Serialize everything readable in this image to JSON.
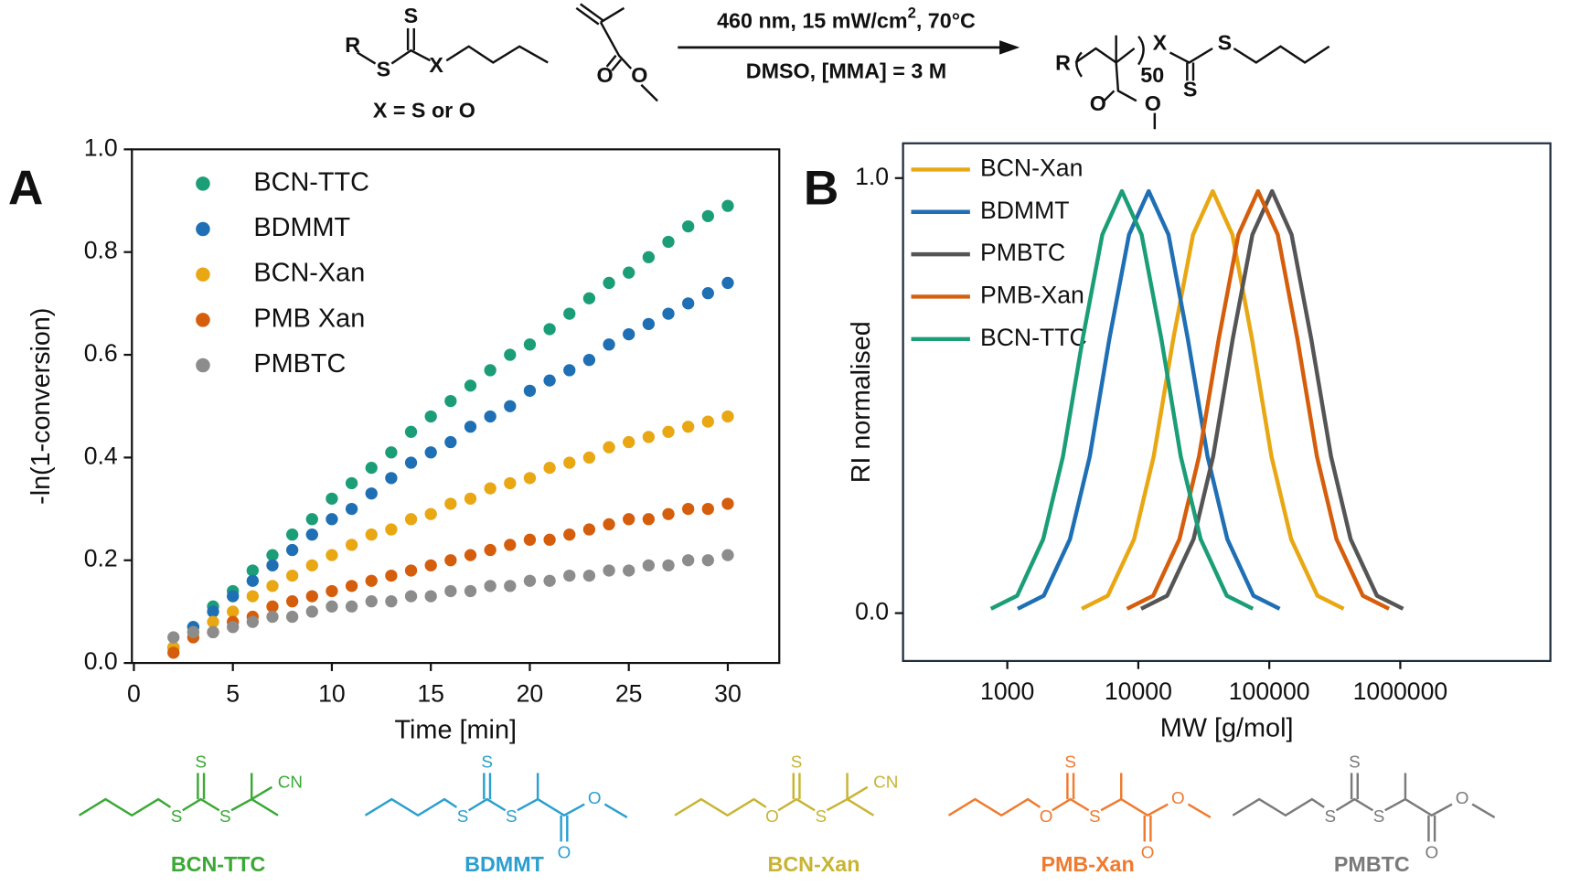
{
  "scheme": {
    "reactant_atoms": [
      "R",
      "S",
      "S",
      "X"
    ],
    "x_def": "X = S or O",
    "monomer_atoms": [
      "O",
      "O"
    ],
    "conditions_top": [
      "460 nm, 15 mW/cm",
      "2",
      ", 70°C"
    ],
    "conditions_bottom": "DMSO, [MMA] = 3 M",
    "product_atoms": [
      "R",
      "X",
      "50",
      "S",
      "S",
      "O",
      "O"
    ]
  },
  "chart_data": [
    {
      "type": "scatter",
      "panel": "A",
      "xlabel": "Time [min]",
      "ylabel": "-ln(1-conversion)",
      "xlim": [
        -0.1,
        32.6
      ],
      "ylim": [
        0,
        1.0
      ],
      "xticks": [
        0,
        5,
        10,
        15,
        20,
        25,
        30
      ],
      "yticks": [
        {
          "value": 0,
          "label": "0.0"
        },
        {
          "value": 0.2,
          "label": "0.2"
        },
        {
          "value": 0.4,
          "label": "0.4"
        },
        {
          "value": 0.6,
          "label": "0.6"
        },
        {
          "value": 0.8,
          "label": "0.8"
        },
        {
          "value": 1.0,
          "label": "1.0"
        }
      ],
      "legend": "upper left",
      "x": [
        2,
        3,
        4,
        5,
        6,
        7,
        8,
        9,
        10,
        11,
        12,
        13,
        14,
        15,
        16,
        17,
        18,
        19,
        20,
        21,
        22,
        23,
        24,
        25,
        26,
        27,
        28,
        29,
        30
      ],
      "series": [
        {
          "name": "BCN-TTC",
          "color": "#1b9e77",
          "values": [
            0.03,
            0.07,
            0.11,
            0.14,
            0.18,
            0.21,
            0.25,
            0.28,
            0.32,
            0.35,
            0.38,
            0.41,
            0.45,
            0.48,
            0.51,
            0.54,
            0.57,
            0.6,
            0.62,
            0.65,
            0.68,
            0.71,
            0.74,
            0.76,
            0.79,
            0.82,
            0.85,
            0.87,
            0.89
          ]
        },
        {
          "name": "BDMMT",
          "color": "#1f6fb5",
          "values": [
            0.03,
            0.07,
            0.1,
            0.13,
            0.16,
            0.19,
            0.22,
            0.25,
            0.28,
            0.3,
            0.33,
            0.36,
            0.39,
            0.41,
            0.43,
            0.46,
            0.48,
            0.5,
            0.53,
            0.55,
            0.57,
            0.59,
            0.62,
            0.64,
            0.66,
            0.68,
            0.7,
            0.72,
            0.74
          ]
        },
        {
          "name": "BCN-Xan",
          "color": "#e8a713",
          "values": [
            0.03,
            0.06,
            0.08,
            0.1,
            0.13,
            0.15,
            0.17,
            0.19,
            0.21,
            0.23,
            0.25,
            0.26,
            0.28,
            0.29,
            0.31,
            0.32,
            0.34,
            0.35,
            0.36,
            0.38,
            0.39,
            0.4,
            0.42,
            0.43,
            0.44,
            0.45,
            0.46,
            0.47,
            0.48
          ]
        },
        {
          "name": "PMB Xan",
          "color": "#d55e0d",
          "values": [
            0.02,
            0.05,
            0.06,
            0.08,
            0.09,
            0.11,
            0.12,
            0.13,
            0.14,
            0.15,
            0.16,
            0.17,
            0.18,
            0.19,
            0.2,
            0.21,
            0.22,
            0.23,
            0.24,
            0.24,
            0.25,
            0.26,
            0.27,
            0.28,
            0.28,
            0.29,
            0.3,
            0.3,
            0.31
          ]
        },
        {
          "name": "PMBTC",
          "color": "#8c8c8c",
          "values": [
            0.05,
            0.06,
            0.06,
            0.07,
            0.08,
            0.09,
            0.09,
            0.1,
            0.11,
            0.11,
            0.12,
            0.12,
            0.13,
            0.13,
            0.14,
            0.14,
            0.15,
            0.15,
            0.16,
            0.16,
            0.17,
            0.17,
            0.18,
            0.18,
            0.19,
            0.19,
            0.2,
            0.2,
            0.21
          ]
        }
      ]
    },
    {
      "type": "line",
      "panel": "B",
      "xlabel": "MW [g/mol]",
      "ylabel": "RI normalised",
      "xscale": "log",
      "xlim": [
        160,
        14000000
      ],
      "ylim": [
        -0.11,
        1.08
      ],
      "xticks": [
        1000,
        10000,
        100000,
        1000000
      ],
      "yticks": [
        {
          "value": 0,
          "label": "0.0"
        },
        {
          "value": 1,
          "label": "1.0"
        }
      ],
      "legend": "upper left",
      "series": [
        {
          "name": "BCN-Xan",
          "color": "#e8a713",
          "x": [
            3700,
            5850,
            9290,
            13100,
            18500,
            26200,
            37000,
            52300,
            73800,
            104000,
            147000,
            233000,
            370000
          ],
          "values": [
            0.01,
            0.04,
            0.17,
            0.36,
            0.63,
            0.87,
            0.97,
            0.87,
            0.63,
            0.36,
            0.17,
            0.04,
            0.01
          ]
        },
        {
          "name": "BDMMT",
          "color": "#1f6fb5",
          "x": [
            1200,
            1900,
            3010,
            4260,
            6010,
            8500,
            12000,
            17000,
            23900,
            33800,
            47800,
            75700,
            120000
          ],
          "values": [
            0.01,
            0.04,
            0.17,
            0.36,
            0.63,
            0.87,
            0.97,
            0.87,
            0.63,
            0.36,
            0.17,
            0.04,
            0.01
          ]
        },
        {
          "name": "PMBTC",
          "color": "#555555",
          "x": [
            10500,
            16600,
            26400,
            37300,
            52600,
            74300,
            105000,
            148000,
            209000,
            296000,
            418000,
            663000,
            1050000
          ],
          "values": [
            0.01,
            0.04,
            0.17,
            0.36,
            0.63,
            0.87,
            0.97,
            0.87,
            0.63,
            0.36,
            0.17,
            0.04,
            0.01
          ]
        },
        {
          "name": "PMB-Xan",
          "color": "#d55e0d",
          "x": [
            8200,
            13000,
            20600,
            29100,
            41100,
            58100,
            82000,
            116000,
            164000,
            231000,
            326000,
            517000,
            820000
          ],
          "values": [
            0.01,
            0.04,
            0.17,
            0.36,
            0.63,
            0.87,
            0.97,
            0.87,
            0.63,
            0.36,
            0.17,
            0.04,
            0.01
          ]
        },
        {
          "name": "BCN-TTC",
          "color": "#1b9e77",
          "x": [
            750,
            1190,
            1880,
            2660,
            3760,
            5310,
            7500,
            10600,
            15000,
            21100,
            29900,
            47300,
            75000
          ],
          "values": [
            0.01,
            0.04,
            0.17,
            0.36,
            0.63,
            0.87,
            0.97,
            0.87,
            0.63,
            0.36,
            0.17,
            0.04,
            0.01
          ]
        }
      ]
    }
  ],
  "structures": [
    {
      "name": "BCN-TTC",
      "color": "#3aa935",
      "atoms": [
        "S",
        "S",
        "S",
        "CN"
      ]
    },
    {
      "name": "BDMMT",
      "color": "#2a9fd0",
      "atoms": [
        "S",
        "S",
        "S",
        "O",
        "O"
      ]
    },
    {
      "name": "BCN-Xan",
      "color": "#c8b433",
      "atoms": [
        "S",
        "O",
        "S",
        "CN"
      ]
    },
    {
      "name": "PMB-Xan",
      "color": "#f07a2e",
      "atoms": [
        "S",
        "O",
        "S",
        "O",
        "O"
      ]
    },
    {
      "name": "PMBTC",
      "color": "#7a7a7a",
      "atoms": [
        "S",
        "S",
        "S",
        "O",
        "O"
      ]
    }
  ]
}
